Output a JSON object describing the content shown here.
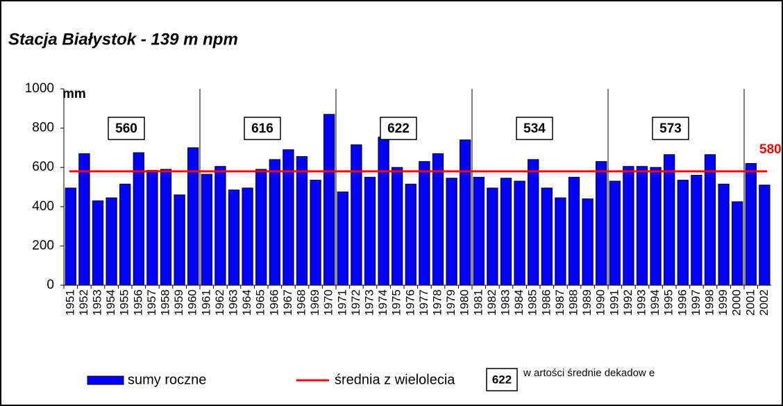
{
  "chart_data": {
    "type": "bar",
    "title": "Stacja Białystok - 139 m npm",
    "y_label": "mm",
    "categories": [
      "1951",
      "1952",
      "1953",
      "1954",
      "1955",
      "1956",
      "1957",
      "1958",
      "1959",
      "1960",
      "1961",
      "1962",
      "1963",
      "1964",
      "1965",
      "1966",
      "1967",
      "1968",
      "1969",
      "1970",
      "1971",
      "1972",
      "1973",
      "1974",
      "1975",
      "1976",
      "1977",
      "1978",
      "1979",
      "1980",
      "1981",
      "1982",
      "1983",
      "1984",
      "1985",
      "1986",
      "1987",
      "1988",
      "1989",
      "1990",
      "1991",
      "1992",
      "1993",
      "1994",
      "1995",
      "1996",
      "1997",
      "1998",
      "1999",
      "2000",
      "2001",
      "2002"
    ],
    "series": [
      {
        "name": "sumy roczne",
        "color": "#0000ff",
        "values": [
          495,
          670,
          430,
          445,
          515,
          675,
          585,
          590,
          460,
          700,
          565,
          605,
          485,
          495,
          590,
          640,
          690,
          655,
          535,
          870,
          475,
          715,
          550,
          755,
          600,
          515,
          630,
          670,
          545,
          740,
          550,
          495,
          545,
          530,
          640,
          495,
          445,
          550,
          440,
          630,
          530,
          605,
          605,
          600,
          665,
          535,
          560,
          665,
          515,
          425,
          620,
          510
        ]
      }
    ],
    "mean": {
      "name": "średnia z wielolecia",
      "color": "#ff0000",
      "value": 580
    },
    "decade_means": {
      "name": "w artości średnie dekadow e",
      "values": [
        560,
        616,
        622,
        534,
        573
      ]
    },
    "ylim": [
      0,
      1000
    ],
    "yticks": [
      0,
      200,
      400,
      600,
      800,
      1000
    ],
    "grid": false
  }
}
